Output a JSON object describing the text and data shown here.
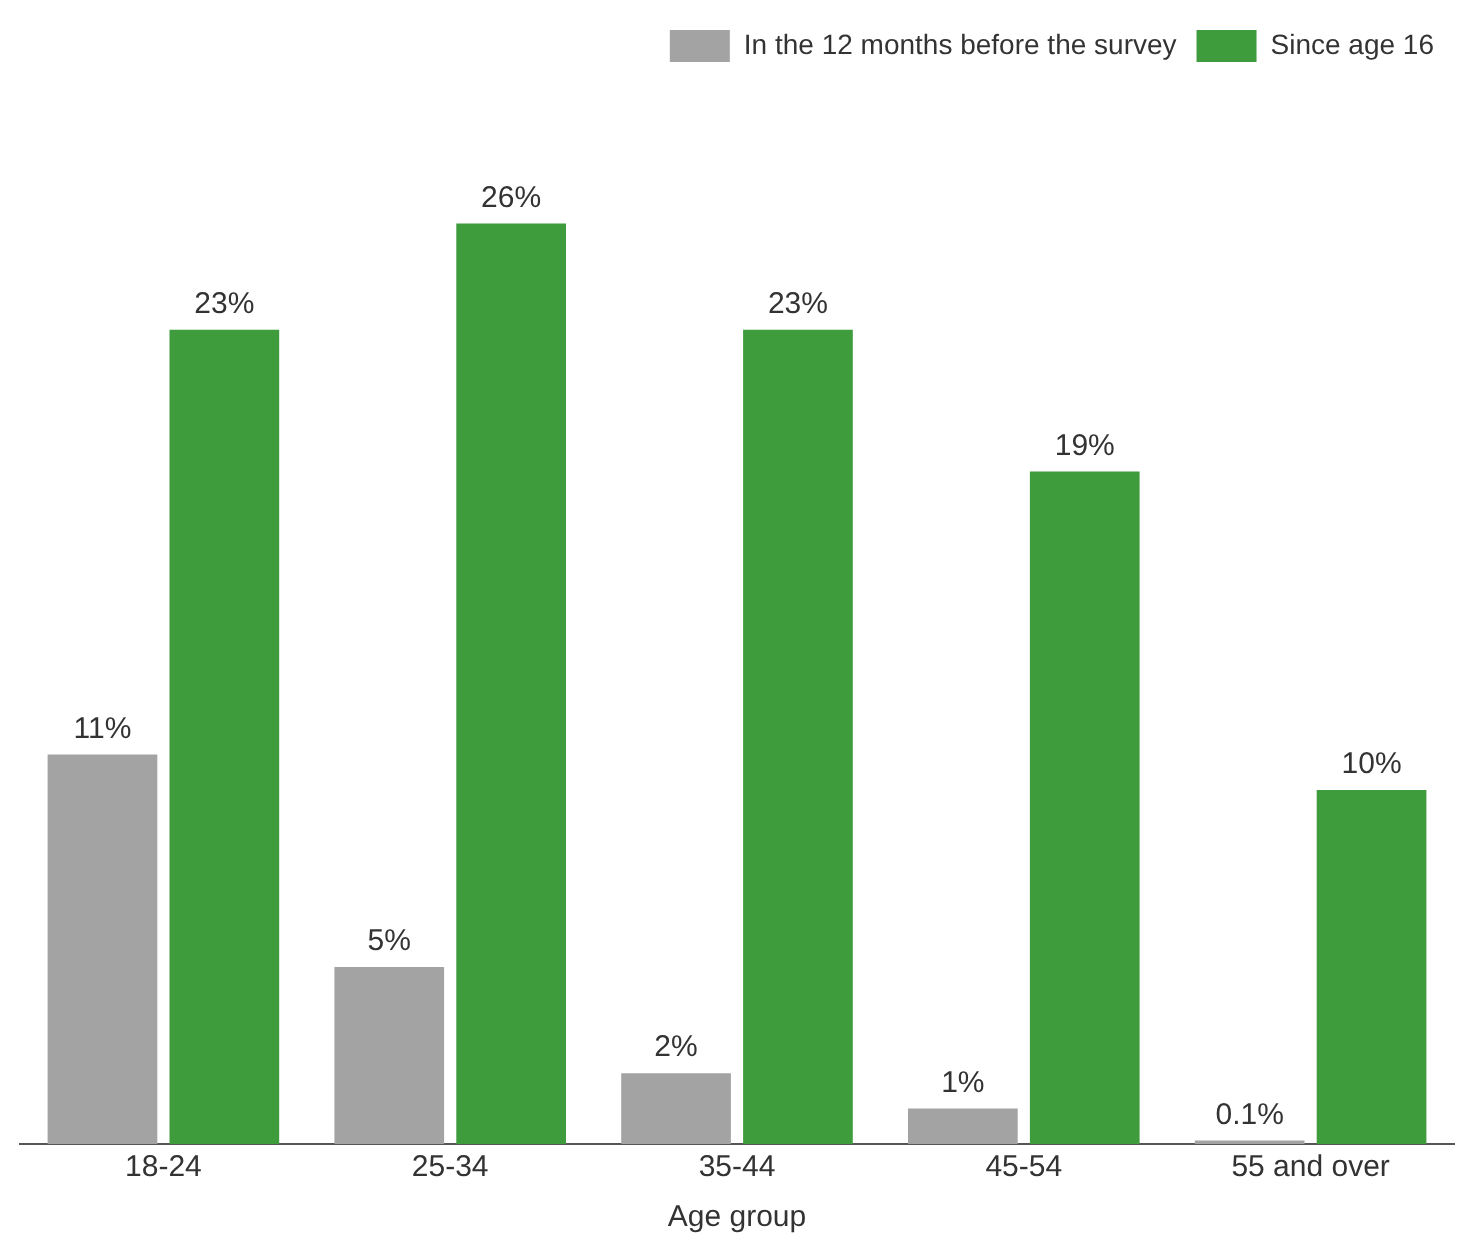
{
  "chart_data": {
    "type": "bar",
    "xlabel": "Age group",
    "categories": [
      "18-24",
      "25-34",
      "35-44",
      "45-54",
      "55 and over"
    ],
    "series": [
      {
        "name": "In the 12 months before the survey",
        "color": "#a3a3a3",
        "values": [
          11,
          5,
          2,
          1,
          0.1
        ],
        "value_labels": [
          "11%",
          "5%",
          "2%",
          "1%",
          "0.1%"
        ]
      },
      {
        "name": "Since age 16",
        "color": "#3f9c3c",
        "values": [
          23,
          26,
          23,
          19,
          10
        ],
        "value_labels": [
          "23%",
          "26%",
          "23%",
          "19%",
          "10%"
        ]
      }
    ],
    "legend": "top right",
    "grid": false
  }
}
